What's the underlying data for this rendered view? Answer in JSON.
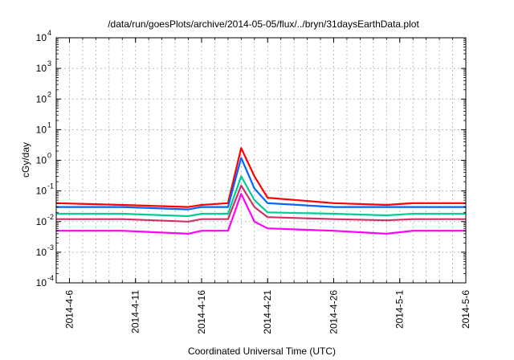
{
  "chart_data": {
    "type": "line",
    "title": "/data/run/goesPlots/archive/2014-05-05/flux/../bryn/31daysEarthData.plot",
    "xlabel": "Coordinated Universal Time (UTC)",
    "ylabel": "cGy/day",
    "scale_y": "log",
    "ylim": [
      0.0001,
      10000
    ],
    "xlim": [
      "2014-04-05",
      "2014-05-06"
    ],
    "grid": true,
    "y_ticks": [
      {
        "base": "10",
        "exp": "-4"
      },
      {
        "base": "10",
        "exp": "-3"
      },
      {
        "base": "10",
        "exp": "-2"
      },
      {
        "base": "10",
        "exp": "-1"
      },
      {
        "base": "10",
        "exp": "0"
      },
      {
        "base": "10",
        "exp": "1"
      },
      {
        "base": "10",
        "exp": "2"
      },
      {
        "base": "10",
        "exp": "3"
      },
      {
        "base": "10",
        "exp": "4"
      }
    ],
    "x_ticks": [
      "2014-4-6",
      "2014-4-11",
      "2014-4-16",
      "2014-4-21",
      "2014-4-26",
      "2014-5-1",
      "2014-5-6"
    ],
    "series": [
      {
        "color": "#ff0000",
        "x": [
          "2014-04-05",
          "2014-04-10",
          "2014-04-15",
          "2014-04-16",
          "2014-04-18",
          "2014-04-19",
          "2014-04-20",
          "2014-04-21",
          "2014-04-26",
          "2014-04-30",
          "2014-05-02",
          "2014-05-06"
        ],
        "y": [
          0.04,
          0.035,
          0.03,
          0.035,
          0.04,
          2.5,
          0.3,
          0.06,
          0.04,
          0.035,
          0.04,
          0.04
        ]
      },
      {
        "color": "#0066ff",
        "x": [
          "2014-04-05",
          "2014-04-10",
          "2014-04-15",
          "2014-04-16",
          "2014-04-18",
          "2014-04-19",
          "2014-04-20",
          "2014-04-21",
          "2014-04-26",
          "2014-04-30",
          "2014-05-02",
          "2014-05-06"
        ],
        "y": [
          0.03,
          0.03,
          0.025,
          0.03,
          0.03,
          1.2,
          0.12,
          0.04,
          0.03,
          0.03,
          0.03,
          0.03
        ]
      },
      {
        "color": "#00cc99",
        "x": [
          "2014-04-05",
          "2014-04-10",
          "2014-04-15",
          "2014-04-16",
          "2014-04-18",
          "2014-04-19",
          "2014-04-20",
          "2014-04-21",
          "2014-04-26",
          "2014-04-30",
          "2014-05-02",
          "2014-05-06"
        ],
        "y": [
          0.018,
          0.018,
          0.015,
          0.018,
          0.018,
          0.3,
          0.05,
          0.02,
          0.018,
          0.016,
          0.018,
          0.018
        ]
      },
      {
        "color": "#cc3366",
        "x": [
          "2014-04-05",
          "2014-04-10",
          "2014-04-15",
          "2014-04-16",
          "2014-04-18",
          "2014-04-19",
          "2014-04-20",
          "2014-04-21",
          "2014-04-26",
          "2014-04-30",
          "2014-05-02",
          "2014-05-06"
        ],
        "y": [
          0.012,
          0.012,
          0.01,
          0.012,
          0.012,
          0.15,
          0.03,
          0.014,
          0.012,
          0.011,
          0.012,
          0.012
        ]
      },
      {
        "color": "#ff00ff",
        "x": [
          "2014-04-05",
          "2014-04-10",
          "2014-04-15",
          "2014-04-16",
          "2014-04-18",
          "2014-04-19",
          "2014-04-20",
          "2014-04-21",
          "2014-04-26",
          "2014-04-30",
          "2014-05-02",
          "2014-05-06"
        ],
        "y": [
          0.005,
          0.005,
          0.004,
          0.005,
          0.005,
          0.08,
          0.01,
          0.006,
          0.005,
          0.004,
          0.005,
          0.005
        ]
      }
    ]
  }
}
